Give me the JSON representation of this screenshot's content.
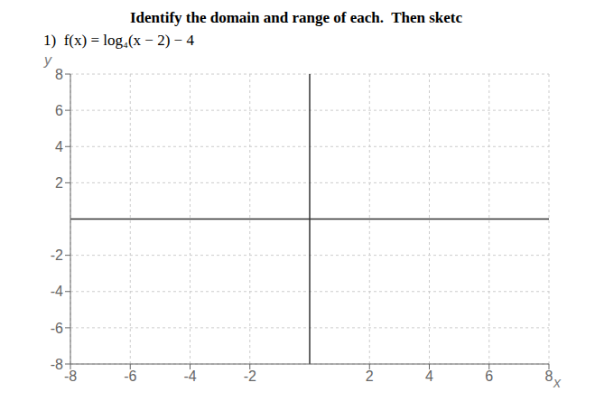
{
  "chart_data": {
    "type": "scatter",
    "title": "Identify the domain and range of each.  Then sketc",
    "annotations": [
      "1)  f(x) = log₄(x − 2) − 4"
    ],
    "xlabel": "x",
    "ylabel": "y",
    "xlim": [
      -8,
      8
    ],
    "ylim": [
      -8,
      8
    ],
    "xticks": [
      -8,
      -6,
      -4,
      -2,
      2,
      4,
      6,
      8
    ],
    "yticks": [
      -8,
      -6,
      -4,
      -2,
      2,
      4,
      6,
      8
    ],
    "grid": true
  }
}
